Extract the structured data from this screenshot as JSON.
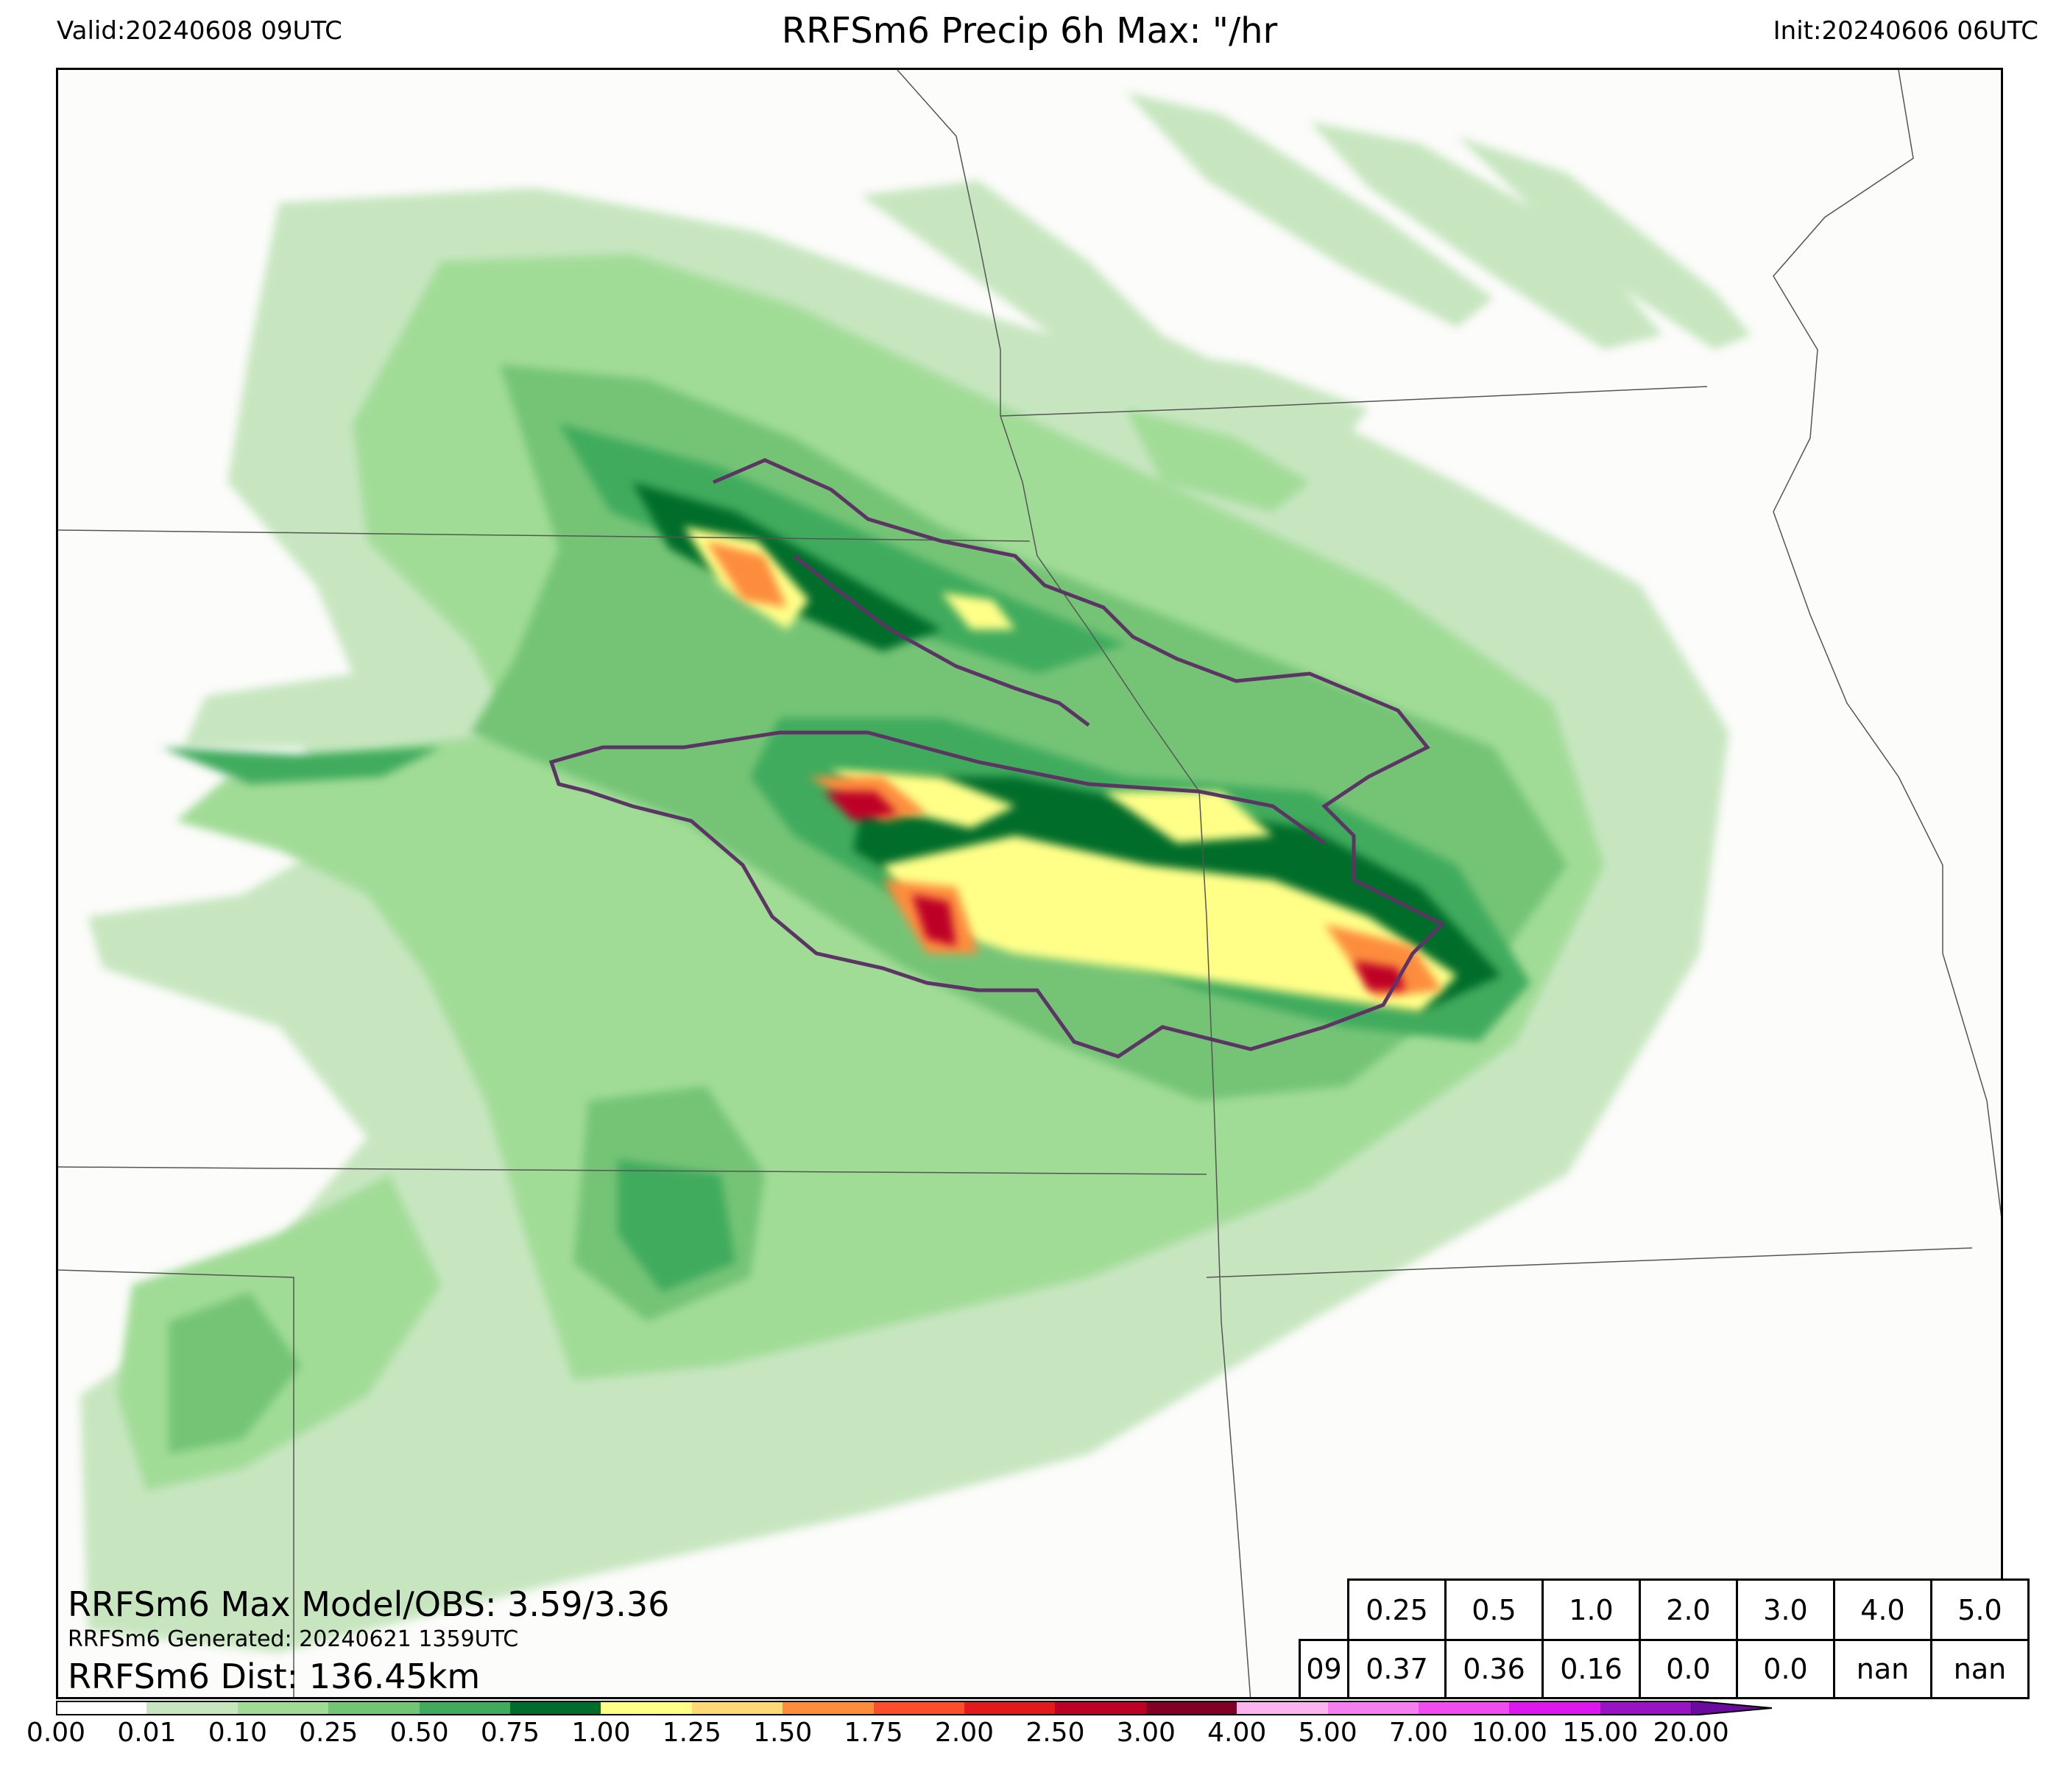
{
  "header": {
    "valid": "Valid:20240608 09UTC",
    "title": "RRFSm6 Precip 6h Max: \"/hr",
    "init": "Init:20240606 06UTC"
  },
  "annotations": {
    "max_line": "RRFSm6 Max Model/OBS: 3.59/3.36",
    "generated_line": "RRFSm6 Generated: 20240621 1359UTC",
    "dist_line": "RRFSm6 Dist: 136.45km"
  },
  "stats_table": {
    "thresholds": [
      "0.25",
      "0.5",
      "1.0",
      "2.0",
      "3.0",
      "4.0",
      "5.0"
    ],
    "row_label": "09",
    "values": [
      "0.37",
      "0.36",
      "0.16",
      "0.0",
      "0.0",
      "nan",
      "nan"
    ]
  },
  "colorbar": {
    "ticks": [
      "0.00",
      "0.01",
      "0.10",
      "0.25",
      "0.50",
      "0.75",
      "1.00",
      "1.25",
      "1.50",
      "1.75",
      "2.00",
      "2.50",
      "3.00",
      "4.00",
      "5.00",
      "7.00",
      "10.00",
      "15.00",
      "20.00"
    ],
    "colors": [
      "#ffffff",
      "#c7e6c0",
      "#a1dc97",
      "#74c476",
      "#41ab5d",
      "#006d2c",
      "#ffff88",
      "#fed976",
      "#fd8d3c",
      "#fc4e2a",
      "#e31a1c",
      "#bd0026",
      "#800026",
      "#fbb4ee",
      "#f77ef0",
      "#f04cf0",
      "#dd18ee",
      "#9912c4"
    ],
    "extend_color": "#6a0aa0"
  },
  "map": {
    "colors": {
      "background": "#fcfcfa",
      "border_line": "#555555",
      "obs_contour": "#5c3564"
    }
  }
}
